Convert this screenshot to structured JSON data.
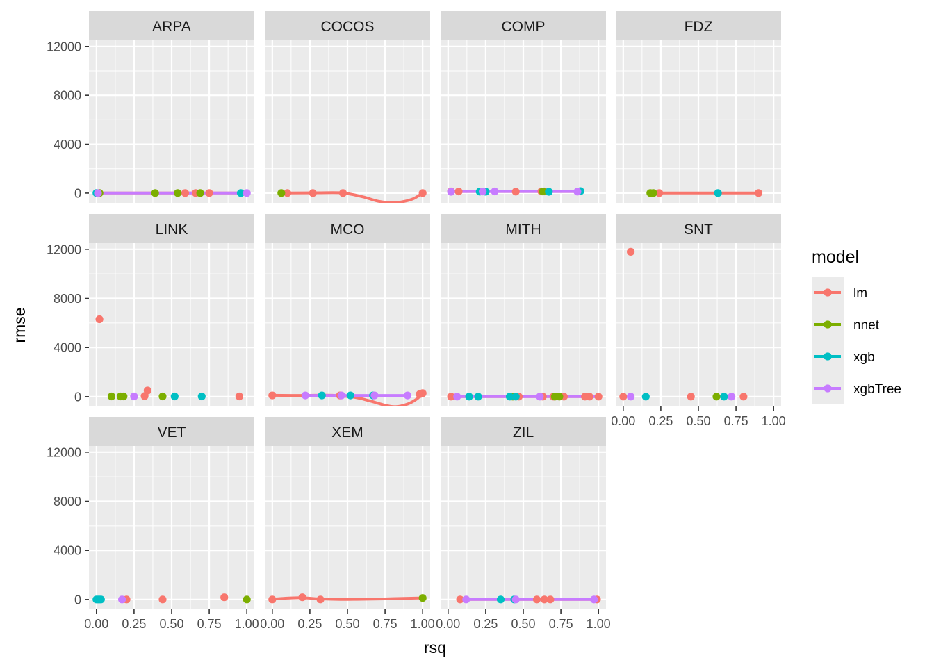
{
  "chart_data": {
    "type": "scatter",
    "xlabel": "rsq",
    "ylabel": "rmse",
    "xlim": [
      -0.05,
      1.05
    ],
    "ylim": [
      -800,
      12500
    ],
    "x_ticks": [
      0,
      0.25,
      0.5,
      0.75,
      1.0
    ],
    "x_tick_labels": [
      "0.00",
      "0.25",
      "0.50",
      "0.75",
      "1.00"
    ],
    "y_ticks": [
      0,
      4000,
      8000,
      12000
    ],
    "y_tick_labels": [
      "0",
      "4000",
      "8000",
      "12000"
    ],
    "grid": true,
    "legend": {
      "title": "model",
      "position": "right",
      "entries": [
        {
          "name": "lm",
          "color": "#F8766D"
        },
        {
          "name": "nnet",
          "color": "#7CAE00"
        },
        {
          "name": "xgb",
          "color": "#00BFC4"
        },
        {
          "name": "xgbTree",
          "color": "#C77CFF"
        }
      ]
    },
    "panels": [
      {
        "name": "ARPA",
        "points": {
          "lm": [
            [
              0.59,
              5
            ],
            [
              0.66,
              5
            ],
            [
              0.75,
              5
            ],
            [
              0.02,
              5
            ]
          ],
          "nnet": [
            [
              0.02,
              5
            ],
            [
              0.39,
              5
            ],
            [
              0.54,
              5
            ],
            [
              0.69,
              5
            ]
          ],
          "xgb": [
            [
              0.0,
              5
            ],
            [
              0.96,
              5
            ]
          ],
          "xgbTree": [
            [
              0.01,
              5
            ],
            [
              1.0,
              5
            ]
          ]
        },
        "lines": {
          "lm": [
            [
              0.0,
              5
            ],
            [
              1.0,
              5
            ]
          ],
          "xgbTree": [
            [
              0.0,
              5
            ],
            [
              1.0,
              5
            ]
          ]
        }
      },
      {
        "name": "COCOS",
        "points": {
          "lm": [
            [
              0.1,
              5
            ],
            [
              0.27,
              5
            ],
            [
              0.47,
              5
            ],
            [
              1.0,
              5
            ]
          ],
          "nnet": [
            [
              0.06,
              5
            ]
          ]
        },
        "lines": {
          "lm": [
            [
              0.1,
              10
            ],
            [
              0.3,
              25
            ],
            [
              0.47,
              10
            ],
            [
              0.6,
              -300
            ],
            [
              0.7,
              -650
            ],
            [
              0.8,
              -800
            ],
            [
              0.87,
              -700
            ],
            [
              0.94,
              -450
            ],
            [
              1.0,
              5
            ]
          ]
        }
      },
      {
        "name": "COMP",
        "points": {
          "lm": [
            [
              0.02,
              140
            ],
            [
              0.07,
              130
            ],
            [
              0.45,
              120
            ],
            [
              0.62,
              140
            ],
            [
              0.64,
              135
            ]
          ],
          "nnet": [
            [
              0.63,
              130
            ]
          ],
          "xgb": [
            [
              0.21,
              120
            ],
            [
              0.25,
              115
            ],
            [
              0.67,
              110
            ],
            [
              0.88,
              160
            ]
          ],
          "xgbTree": [
            [
              0.02,
              110
            ],
            [
              0.23,
              130
            ],
            [
              0.31,
              140
            ],
            [
              0.86,
              120
            ]
          ]
        },
        "lines": {
          "lm": [
            [
              0.02,
              130
            ],
            [
              0.88,
              130
            ]
          ],
          "xgbTree": [
            [
              0.02,
              130
            ],
            [
              0.88,
              130
            ]
          ]
        }
      },
      {
        "name": "FDZ",
        "points": {
          "lm": [
            [
              0.24,
              5
            ],
            [
              0.9,
              5
            ]
          ],
          "nnet": [
            [
              0.18,
              5
            ],
            [
              0.2,
              5
            ]
          ],
          "xgb": [
            [
              0.63,
              5
            ]
          ]
        },
        "lines": {
          "lm": [
            [
              0.2,
              5
            ],
            [
              0.9,
              5
            ]
          ]
        }
      },
      {
        "name": "LINK",
        "points": {
          "lm": [
            [
              0.02,
              6300
            ],
            [
              0.32,
              50
            ],
            [
              0.34,
              500
            ],
            [
              0.95,
              20
            ]
          ],
          "nnet": [
            [
              0.1,
              20
            ],
            [
              0.16,
              20
            ],
            [
              0.18,
              20
            ],
            [
              0.44,
              20
            ]
          ],
          "xgb": [
            [
              0.52,
              20
            ],
            [
              0.7,
              20
            ]
          ],
          "xgbTree": [
            [
              0.25,
              20
            ]
          ]
        },
        "lines": {}
      },
      {
        "name": "MCO",
        "points": {
          "lm": [
            [
              0.0,
              100
            ],
            [
              0.45,
              100
            ],
            [
              0.98,
              200
            ],
            [
              1.0,
              280
            ]
          ],
          "xgb": [
            [
              0.33,
              100
            ],
            [
              0.52,
              100
            ],
            [
              0.67,
              100
            ]
          ],
          "xgbTree": [
            [
              0.22,
              100
            ],
            [
              0.46,
              100
            ],
            [
              0.68,
              100
            ],
            [
              0.9,
              100
            ]
          ]
        },
        "lines": {
          "lm": [
            [
              0.0,
              110
            ],
            [
              0.2,
              100
            ],
            [
              0.4,
              110
            ],
            [
              0.55,
              -60
            ],
            [
              0.65,
              -350
            ],
            [
              0.75,
              -700
            ],
            [
              0.82,
              -820
            ],
            [
              0.9,
              -600
            ],
            [
              0.96,
              -200
            ],
            [
              1.0,
              280
            ]
          ],
          "xgbTree": [
            [
              0.22,
              100
            ],
            [
              0.9,
              100
            ]
          ]
        }
      },
      {
        "name": "MITH",
        "points": {
          "lm": [
            [
              0.02,
              5
            ],
            [
              0.47,
              5
            ],
            [
              0.63,
              5
            ],
            [
              0.7,
              5
            ],
            [
              0.77,
              5
            ],
            [
              0.91,
              5
            ],
            [
              0.94,
              5
            ],
            [
              1.0,
              5
            ]
          ],
          "nnet": [
            [
              0.43,
              5
            ],
            [
              0.71,
              5
            ],
            [
              0.74,
              5
            ]
          ],
          "xgb": [
            [
              0.14,
              5
            ],
            [
              0.2,
              5
            ],
            [
              0.41,
              5
            ],
            [
              0.45,
              5
            ]
          ],
          "xgbTree": [
            [
              0.06,
              5
            ],
            [
              0.61,
              5
            ]
          ]
        },
        "lines": {
          "lm": [
            [
              0.02,
              5
            ],
            [
              1.0,
              5
            ]
          ],
          "xgbTree": [
            [
              0.02,
              5
            ],
            [
              1.0,
              5
            ]
          ]
        }
      },
      {
        "name": "SNT",
        "points": {
          "lm": [
            [
              0.0,
              5
            ],
            [
              0.05,
              11800
            ],
            [
              0.45,
              5
            ],
            [
              0.8,
              5
            ]
          ],
          "nnet": [
            [
              0.62,
              5
            ]
          ],
          "xgb": [
            [
              0.15,
              5
            ],
            [
              0.67,
              5
            ]
          ],
          "xgbTree": [
            [
              0.05,
              5
            ],
            [
              0.72,
              5
            ]
          ]
        },
        "lines": {}
      },
      {
        "name": "VET",
        "points": {
          "lm": [
            [
              0.2,
              5
            ],
            [
              0.44,
              5
            ],
            [
              0.85,
              180
            ]
          ],
          "nnet": [
            [
              1.0,
              5
            ]
          ],
          "xgb": [
            [
              0.0,
              5
            ],
            [
              0.01,
              5
            ],
            [
              0.02,
              5
            ],
            [
              0.03,
              5
            ]
          ],
          "xgbTree": [
            [
              0.17,
              5
            ]
          ]
        },
        "lines": {}
      },
      {
        "name": "XEM",
        "points": {
          "lm": [
            [
              0.0,
              5
            ],
            [
              0.2,
              180
            ],
            [
              0.32,
              5
            ]
          ],
          "nnet": [
            [
              1.0,
              120
            ]
          ]
        },
        "lines": {
          "lm": [
            [
              0.0,
              30
            ],
            [
              0.1,
              110
            ],
            [
              0.2,
              150
            ],
            [
              0.3,
              60
            ],
            [
              0.45,
              10
            ],
            [
              0.6,
              20
            ],
            [
              0.75,
              50
            ],
            [
              0.9,
              100
            ],
            [
              1.0,
              130
            ]
          ]
        }
      },
      {
        "name": "ZIL",
        "points": {
          "lm": [
            [
              0.08,
              5
            ],
            [
              0.59,
              5
            ],
            [
              0.64,
              5
            ],
            [
              0.68,
              5
            ],
            [
              0.99,
              5
            ]
          ],
          "xgb": [
            [
              0.35,
              5
            ],
            [
              0.44,
              5
            ]
          ],
          "xgbTree": [
            [
              0.12,
              5
            ],
            [
              0.45,
              5
            ],
            [
              0.97,
              5
            ]
          ]
        },
        "lines": {
          "lm": [
            [
              0.08,
              5
            ],
            [
              0.99,
              5
            ]
          ],
          "xgbTree": [
            [
              0.08,
              5
            ],
            [
              0.99,
              5
            ]
          ]
        }
      }
    ]
  }
}
